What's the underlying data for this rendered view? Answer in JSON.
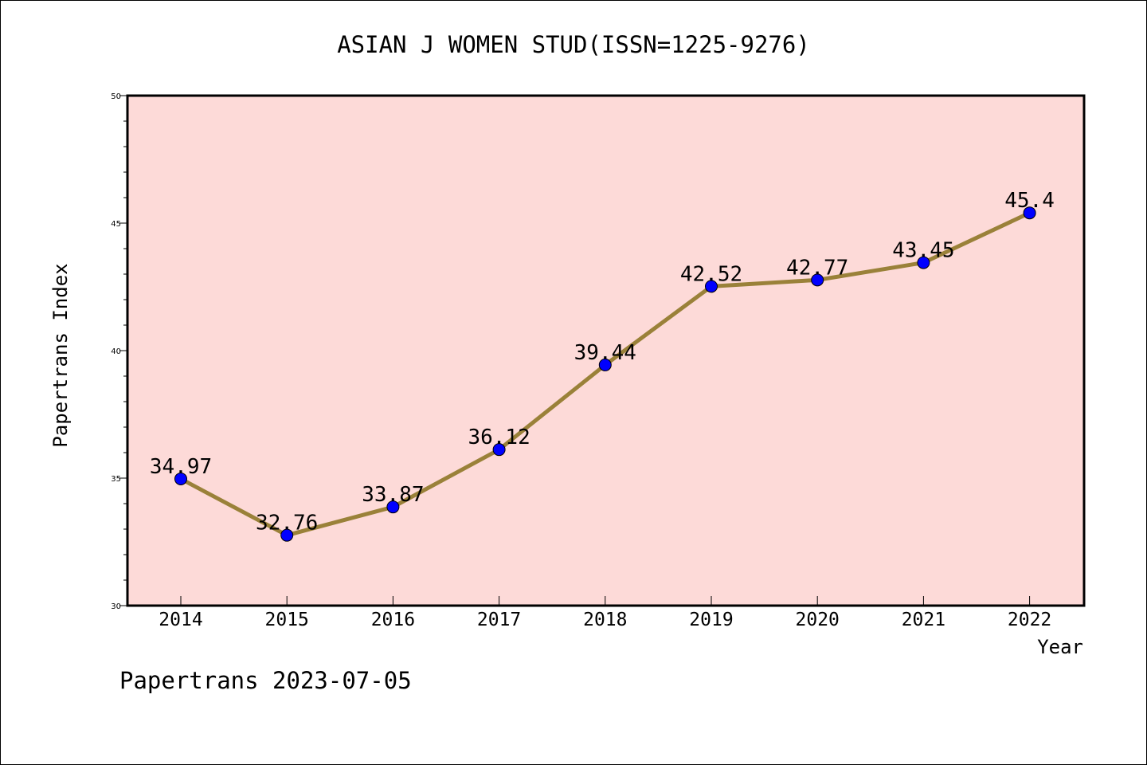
{
  "chart_data": {
    "type": "line",
    "title": "ASIAN J WOMEN STUD(ISSN=1225-9276)",
    "xlabel": "Year",
    "ylabel": "Papertrans Index",
    "footer": "Papertrans 2023-07-05",
    "categories": [
      "2014",
      "2015",
      "2016",
      "2017",
      "2018",
      "2019",
      "2020",
      "2021",
      "2022"
    ],
    "series": [
      {
        "values": [
          34.97,
          32.76,
          33.87,
          36.12,
          39.44,
          42.52,
          42.77,
          43.45,
          45.4
        ],
        "labels": [
          "34.97",
          "32.76",
          "33.87",
          "36.12",
          "39.44",
          "42.52",
          "42.77",
          "43.45",
          "45.4"
        ]
      }
    ],
    "ylim": [
      30,
      50
    ],
    "yticks": [
      "30",
      "35",
      "40",
      "45",
      "50"
    ],
    "grid": false,
    "legend": "none",
    "colors": {
      "plot_background": "#fddad8",
      "line": "#9a8139",
      "marker": "#0000ff",
      "frame": "#000000"
    }
  }
}
